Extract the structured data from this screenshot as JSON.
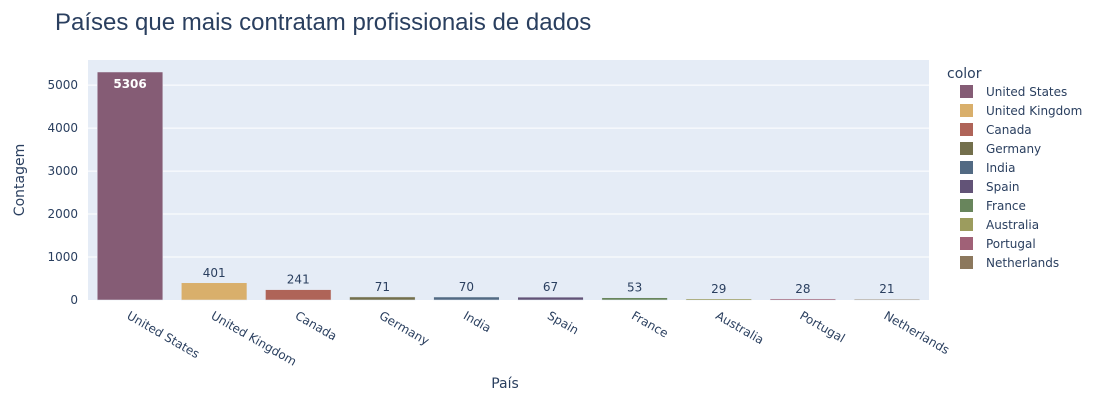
{
  "chart_data": {
    "type": "bar",
    "title": "Países que mais contratam profissionais de dados",
    "xlabel": "País",
    "ylabel": "Contagem",
    "legend_title": "color",
    "legend_position": "right",
    "categories": [
      "United States",
      "United Kingdom",
      "Canada",
      "Germany",
      "India",
      "Spain",
      "France",
      "Australia",
      "Portugal",
      "Netherlands"
    ],
    "values": [
      5306,
      401,
      241,
      71,
      70,
      67,
      53,
      29,
      28,
      21
    ],
    "value_labels": [
      "5306",
      "401",
      "241",
      "71",
      "70",
      "67",
      "53",
      "29",
      "28",
      "21"
    ],
    "colors": [
      "#855c75",
      "#d9af6b",
      "#af6458",
      "#736f4c",
      "#526a83",
      "#625377",
      "#68855c",
      "#9c9c5e",
      "#a06177",
      "#8c785d"
    ],
    "yticks": [
      0,
      1000,
      2000,
      3000,
      4000,
      5000
    ],
    "ytick_labels": [
      "0",
      "1000",
      "2000",
      "3000",
      "4000",
      "5000"
    ],
    "ylim": [
      0,
      5585
    ],
    "grid": true,
    "plot_background": "#e5ecf6"
  }
}
